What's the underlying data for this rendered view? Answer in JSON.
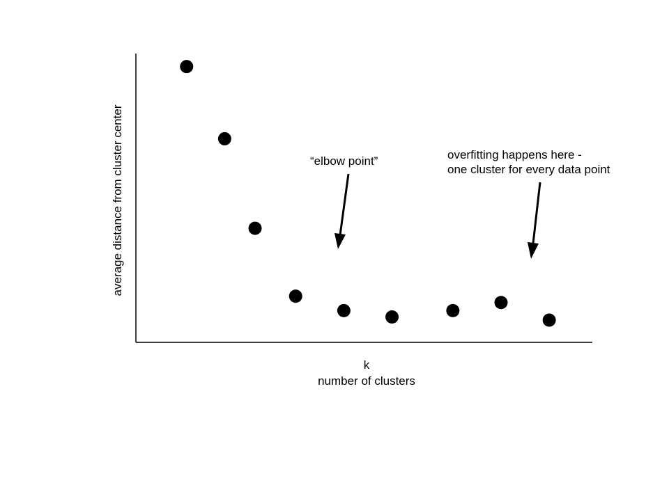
{
  "chart_data": {
    "type": "scatter",
    "title": "",
    "xlabel": [
      "k",
      "number of clusters"
    ],
    "ylabel": "average distance from cluster center",
    "grid": false,
    "ticks": false,
    "points": [
      {
        "x": 1.0,
        "y": 0.955
      },
      {
        "x": 1.75,
        "y": 0.705
      },
      {
        "x": 2.35,
        "y": 0.395
      },
      {
        "x": 3.15,
        "y": 0.16
      },
      {
        "x": 4.1,
        "y": 0.11
      },
      {
        "x": 5.05,
        "y": 0.088
      },
      {
        "x": 6.25,
        "y": 0.11
      },
      {
        "x": 7.2,
        "y": 0.138
      },
      {
        "x": 8.15,
        "y": 0.077
      }
    ],
    "annotations": [
      {
        "id": "elbow",
        "lines": [
          "“elbow point”"
        ]
      },
      {
        "id": "overfit",
        "lines": [
          "overfitting happens here -",
          "one cluster for every data point"
        ]
      }
    ],
    "marker_color": "#000000"
  }
}
